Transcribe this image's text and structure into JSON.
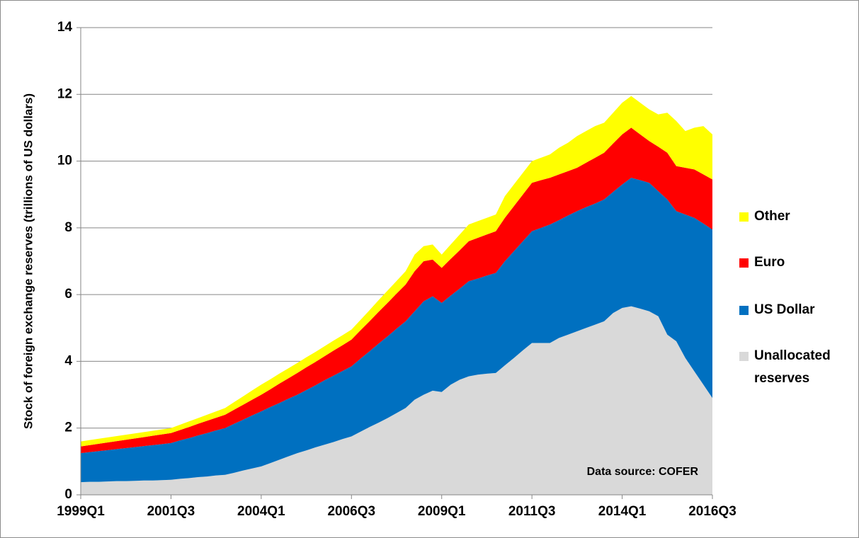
{
  "chart_data": {
    "type": "stacked-area",
    "y_label": "Stock of foreign exchange reserves (trillions of US dollars)",
    "annotation": "Data source: COFER",
    "categories": [
      "1999Q1",
      null,
      null,
      null,
      null,
      null,
      null,
      null,
      null,
      null,
      "2001Q3",
      null,
      null,
      null,
      null,
      null,
      null,
      null,
      null,
      null,
      "2004Q1",
      null,
      null,
      null,
      null,
      null,
      null,
      null,
      null,
      null,
      "2006Q3",
      null,
      null,
      null,
      null,
      null,
      null,
      null,
      null,
      null,
      "2009Q1",
      null,
      null,
      null,
      null,
      null,
      null,
      null,
      null,
      null,
      "2011Q3",
      null,
      null,
      null,
      null,
      null,
      null,
      null,
      null,
      null,
      "2014Q1",
      null,
      null,
      null,
      null,
      null,
      null,
      null,
      null,
      null,
      "2016Q3"
    ],
    "series": [
      {
        "name": "Unallocated reserves",
        "color": "#d9d9d9",
        "values": [
          0.38,
          0.39,
          0.39,
          0.4,
          0.41,
          0.41,
          0.42,
          0.43,
          0.43,
          0.44,
          0.45,
          0.48,
          0.5,
          0.53,
          0.55,
          0.58,
          0.6,
          0.66,
          0.73,
          0.79,
          0.85,
          0.95,
          1.05,
          1.15,
          1.25,
          1.33,
          1.42,
          1.5,
          1.58,
          1.67,
          1.75,
          1.89,
          2.03,
          2.16,
          2.3,
          2.45,
          2.6,
          2.85,
          3.0,
          3.12,
          3.08,
          3.3,
          3.45,
          3.55,
          3.6,
          3.63,
          3.65,
          3.88,
          4.1,
          4.33,
          4.55,
          4.55,
          4.55,
          4.7,
          4.8,
          4.9,
          5.0,
          5.1,
          5.2,
          5.45,
          5.6,
          5.65,
          5.58,
          5.5,
          5.35,
          4.8,
          4.6,
          4.1,
          3.7,
          3.3,
          2.9
        ]
      },
      {
        "name": "US Dollar",
        "color": "#0070c0",
        "values": [
          0.87,
          0.89,
          0.92,
          0.94,
          0.96,
          0.99,
          1.01,
          1.03,
          1.06,
          1.08,
          1.1,
          1.15,
          1.2,
          1.25,
          1.3,
          1.35,
          1.4,
          1.47,
          1.52,
          1.59,
          1.65,
          1.68,
          1.7,
          1.73,
          1.75,
          1.81,
          1.86,
          1.93,
          1.99,
          2.04,
          2.1,
          2.19,
          2.27,
          2.37,
          2.45,
          2.53,
          2.6,
          2.65,
          2.8,
          2.83,
          2.67,
          2.67,
          2.73,
          2.85,
          2.88,
          2.94,
          3.0,
          3.12,
          3.2,
          3.27,
          3.35,
          3.45,
          3.55,
          3.53,
          3.57,
          3.6,
          3.62,
          3.63,
          3.65,
          3.63,
          3.7,
          3.85,
          3.85,
          3.85,
          3.75,
          4.05,
          3.9,
          4.3,
          4.6,
          4.83,
          5.05
        ]
      },
      {
        "name": "Euro",
        "color": "#ff0000",
        "values": [
          0.2,
          0.21,
          0.22,
          0.23,
          0.24,
          0.25,
          0.26,
          0.27,
          0.28,
          0.29,
          0.3,
          0.31,
          0.33,
          0.35,
          0.37,
          0.38,
          0.4,
          0.42,
          0.45,
          0.47,
          0.5,
          0.53,
          0.58,
          0.61,
          0.65,
          0.68,
          0.7,
          0.72,
          0.75,
          0.77,
          0.8,
          0.85,
          0.9,
          0.95,
          1.0,
          1.05,
          1.1,
          1.2,
          1.2,
          1.1,
          1.05,
          1.1,
          1.15,
          1.2,
          1.22,
          1.23,
          1.25,
          1.3,
          1.35,
          1.4,
          1.45,
          1.43,
          1.4,
          1.37,
          1.33,
          1.3,
          1.33,
          1.37,
          1.4,
          1.45,
          1.5,
          1.5,
          1.37,
          1.25,
          1.33,
          1.4,
          1.35,
          1.4,
          1.45,
          1.47,
          1.5
        ]
      },
      {
        "name": "Other",
        "color": "#ffff00",
        "values": [
          0.15,
          0.15,
          0.15,
          0.15,
          0.15,
          0.15,
          0.15,
          0.15,
          0.15,
          0.15,
          0.15,
          0.16,
          0.17,
          0.17,
          0.18,
          0.19,
          0.2,
          0.23,
          0.25,
          0.28,
          0.3,
          0.3,
          0.3,
          0.3,
          0.3,
          0.3,
          0.3,
          0.3,
          0.3,
          0.3,
          0.3,
          0.31,
          0.33,
          0.35,
          0.37,
          0.38,
          0.4,
          0.5,
          0.45,
          0.45,
          0.4,
          0.43,
          0.47,
          0.5,
          0.5,
          0.5,
          0.5,
          0.65,
          0.65,
          0.65,
          0.65,
          0.67,
          0.7,
          0.8,
          0.85,
          0.95,
          0.95,
          0.95,
          0.9,
          0.92,
          0.95,
          0.95,
          0.95,
          0.95,
          0.97,
          1.2,
          1.35,
          1.1,
          1.25,
          1.45,
          1.35
        ]
      }
    ],
    "ylim": [
      0,
      14
    ],
    "yticks": [
      0,
      2,
      4,
      6,
      8,
      10,
      12,
      14
    ],
    "grid": true
  }
}
